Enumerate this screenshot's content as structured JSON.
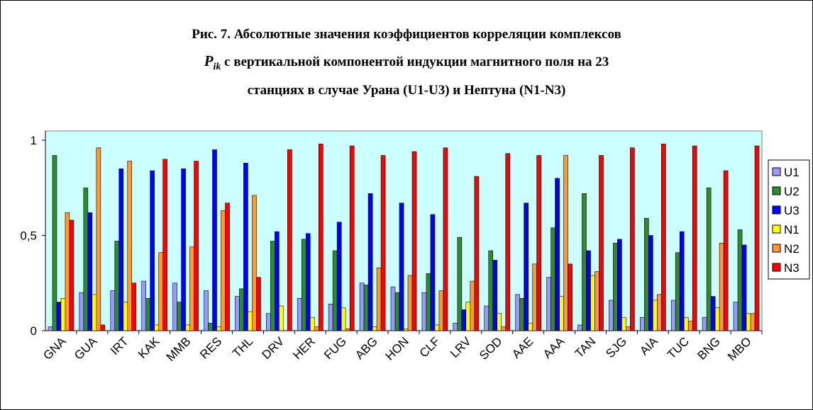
{
  "chart_data": {
    "type": "bar",
    "title": [
      "Рис. 7. Абсолютные значения коэффициентов корреляции комплексов",
      " с вертикальной компонентой индукции магнитного поля на 23",
      "станциях в случае Урана (U1-U3) и Нептуна (N1-N3)"
    ],
    "title_symbol": "P",
    "title_subscript": "ik",
    "categories": [
      "GNA",
      "GUA",
      "IRT",
      "KAK",
      "MMB",
      "RES",
      "THL",
      "DRV",
      "HER",
      "FUG",
      "ABG",
      "HON",
      "CLF",
      "LRV",
      "SOD",
      "AAE",
      "AAA",
      "TAN",
      "SJG",
      "AIA",
      "TUC",
      "BNG",
      "MBO"
    ],
    "series": [
      {
        "name": "U1",
        "color": "#9999ff",
        "values": [
          0.02,
          0.2,
          0.21,
          0.26,
          0.25,
          0.21,
          0.18,
          0.09,
          0.17,
          0.14,
          0.25,
          0.23,
          0.2,
          0.04,
          0.13,
          0.19,
          0.28,
          0.03,
          0.16,
          0.07,
          0.16,
          0.07,
          0.15
        ]
      },
      {
        "name": "U2",
        "color": "#2e8b2e",
        "values": [
          0.92,
          0.75,
          0.47,
          0.17,
          0.15,
          0.04,
          0.22,
          0.47,
          0.48,
          0.42,
          0.24,
          0.2,
          0.3,
          0.49,
          0.42,
          0.17,
          0.54,
          0.72,
          0.46,
          0.59,
          0.41,
          0.75,
          0.53
        ]
      },
      {
        "name": "U3",
        "color": "#0000ff",
        "values": [
          0.15,
          0.62,
          0.85,
          0.84,
          0.85,
          0.95,
          0.88,
          0.52,
          0.51,
          0.57,
          0.72,
          0.67,
          0.61,
          0.11,
          0.37,
          0.67,
          0.8,
          0.42,
          0.48,
          0.5,
          0.52,
          0.18,
          0.45
        ]
      },
      {
        "name": "N1",
        "color": "#ffff00",
        "values": [
          0.17,
          0.19,
          0.15,
          0.03,
          0.03,
          0.02,
          0.1,
          0.13,
          0.07,
          0.12,
          0.02,
          0.01,
          0.03,
          0.15,
          0.09,
          0.04,
          0.18,
          0.29,
          0.07,
          0.16,
          0.07,
          0.12,
          0.09
        ]
      },
      {
        "name": "N2",
        "color": "#ff9933",
        "values": [
          0.62,
          0.96,
          0.89,
          0.41,
          0.44,
          0.63,
          0.71,
          0,
          0.02,
          0.01,
          0.33,
          0.29,
          0.21,
          0.26,
          0.02,
          0.35,
          0.92,
          0.31,
          0.02,
          0.19,
          0.05,
          0.46,
          0.09
        ]
      },
      {
        "name": "N3",
        "color": "#ff0000",
        "values": [
          0.58,
          0.03,
          0.25,
          0.9,
          0.89,
          0.67,
          0.28,
          0.95,
          0.98,
          0.97,
          0.92,
          0.94,
          0.96,
          0.81,
          0.93,
          0.92,
          0.35,
          0.92,
          0.96,
          0.98,
          0.97,
          0.84,
          0.97
        ]
      }
    ],
    "ylim": [
      0,
      1
    ],
    "yticks": [
      0,
      {
        "value": 0.5,
        "label": "0,5"
      },
      1
    ],
    "legend": "right",
    "background": "#ccffff"
  }
}
